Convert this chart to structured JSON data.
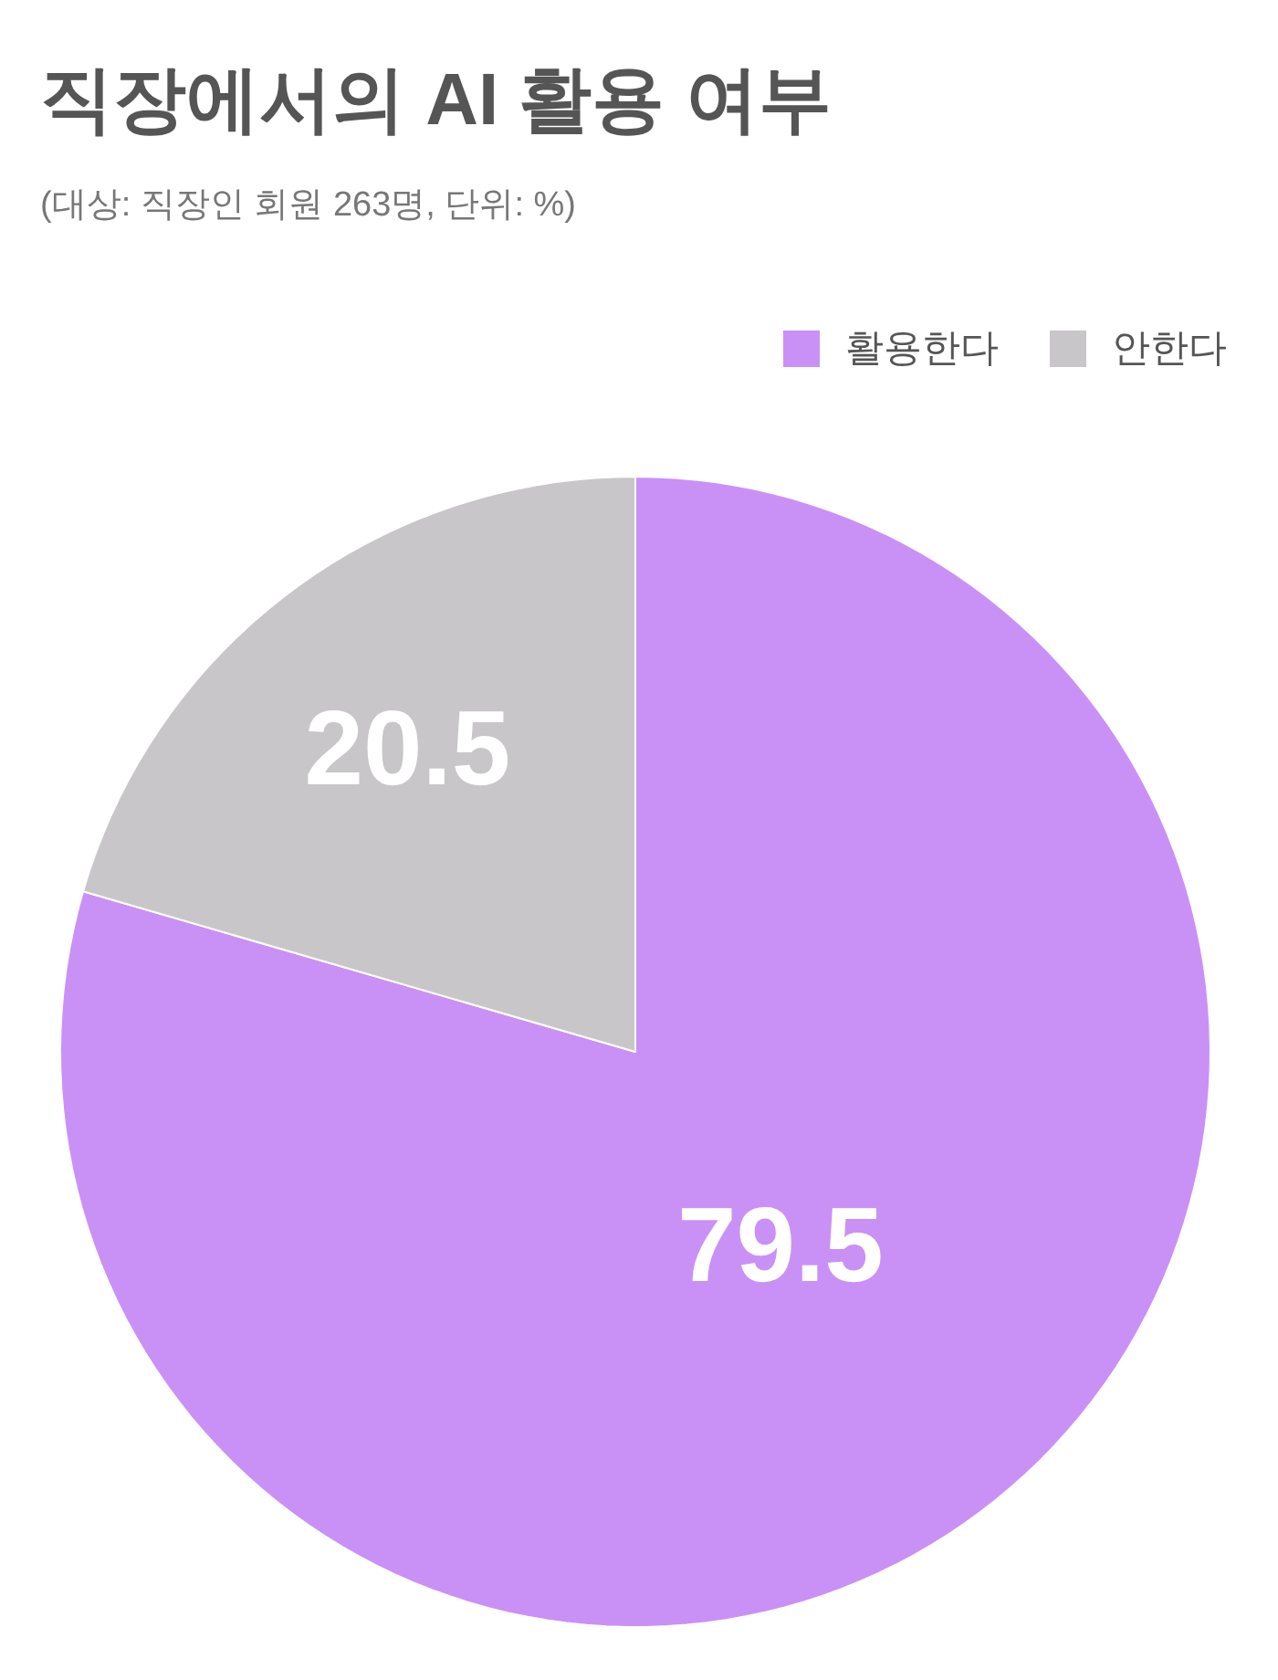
{
  "chart_data": {
    "type": "pie",
    "title": "직장에서의 AI 활용 여부",
    "subtitle": "(대상: 직장인 회원 263명, 단위: %)",
    "categories": [
      "활용한다",
      "안한다"
    ],
    "values": [
      79.5,
      20.5
    ],
    "colors": [
      "#c991f5",
      "#c8c6c8"
    ],
    "data_labels": true,
    "legend": "top right"
  }
}
